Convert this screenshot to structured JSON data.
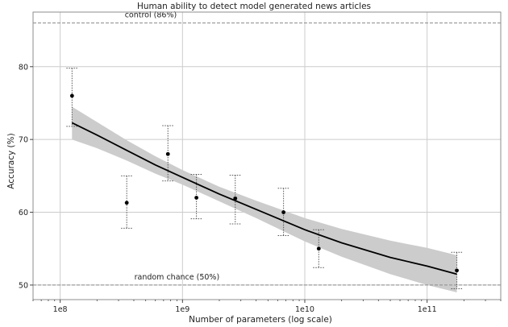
{
  "chart_data": {
    "type": "scatter",
    "title": "Human ability to detect model generated news articles",
    "xlabel": "Number of parameters (log scale)",
    "ylabel": "Accuracy (%)",
    "x_scale": "log",
    "xlim": [
      60000000,
      400000000000
    ],
    "ylim": [
      48,
      87.5
    ],
    "x_ticks": [
      {
        "value": 100000000,
        "label": "1e8"
      },
      {
        "value": 1000000000,
        "label": "1e9"
      },
      {
        "value": 10000000000,
        "label": "1e10"
      },
      {
        "value": 100000000000,
        "label": "1e11"
      }
    ],
    "y_ticks": [
      50,
      60,
      70,
      80
    ],
    "grid": true,
    "points": [
      {
        "x": 125000000,
        "y": 76,
        "err_low": 71.8,
        "err_high": 79.8
      },
      {
        "x": 350000000,
        "y": 61.3,
        "err_low": 57.8,
        "err_high": 65
      },
      {
        "x": 760000000,
        "y": 68,
        "err_low": 64.3,
        "err_high": 71.9
      },
      {
        "x": 1300000000,
        "y": 62,
        "err_low": 59.1,
        "err_high": 65.2
      },
      {
        "x": 2700000000,
        "y": 61.9,
        "err_low": 58.4,
        "err_high": 65.1
      },
      {
        "x": 6700000000,
        "y": 60,
        "err_low": 56.8,
        "err_high": 63.3
      },
      {
        "x": 13000000000,
        "y": 55,
        "err_low": 52.4,
        "err_high": 57.6
      },
      {
        "x": 175000000000,
        "y": 52,
        "err_low": 49.5,
        "err_high": 54.5
      }
    ],
    "trend": [
      {
        "x": 125000000,
        "y": 72.3,
        "lower": 70.0,
        "upper": 74.5
      },
      {
        "x": 200000000,
        "y": 70.6,
        "lower": 68.8,
        "upper": 72.4
      },
      {
        "x": 350000000,
        "y": 68.5,
        "lower": 67.1,
        "upper": 69.9
      },
      {
        "x": 600000000,
        "y": 66.5,
        "lower": 65.3,
        "upper": 67.7
      },
      {
        "x": 1000000000,
        "y": 64.8,
        "lower": 63.8,
        "upper": 65.8
      },
      {
        "x": 2000000000,
        "y": 62.5,
        "lower": 61.5,
        "upper": 63.5
      },
      {
        "x": 4000000000,
        "y": 60.4,
        "lower": 59.2,
        "upper": 61.6
      },
      {
        "x": 10000000000,
        "y": 57.6,
        "lower": 56.0,
        "upper": 59.2
      },
      {
        "x": 20000000000,
        "y": 55.8,
        "lower": 53.9,
        "upper": 57.7
      },
      {
        "x": 50000000000,
        "y": 53.8,
        "lower": 51.5,
        "upper": 56.1
      },
      {
        "x": 100000000000,
        "y": 52.6,
        "lower": 50.0,
        "upper": 55.1
      },
      {
        "x": 175000000000,
        "y": 51.5,
        "lower": 49.0,
        "upper": 54.1
      }
    ],
    "reference_lines": [
      {
        "y": 86,
        "label": "control (86%)",
        "label_x": 550000000
      },
      {
        "y": 50,
        "label": "random chance (50%)",
        "label_x": 900000000
      }
    ],
    "colors": {
      "trend_line": "#000000",
      "band": "#cccccc",
      "points": "#000000",
      "error_bars": "#555555",
      "reference_line": "#8c8c8c",
      "grid": "#cccccc",
      "frame": "#8c8c8c"
    }
  }
}
